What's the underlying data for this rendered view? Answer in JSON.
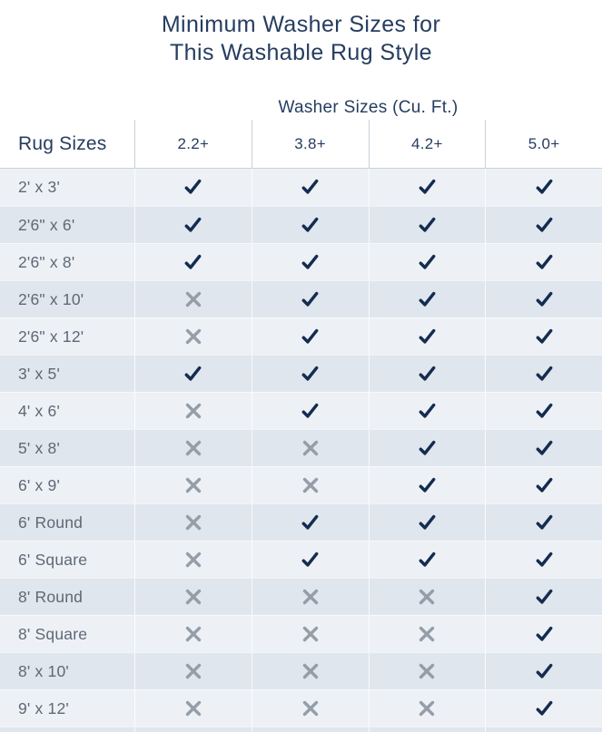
{
  "title": "Minimum Washer Sizes for\nThis Washable Rug Style",
  "chart_data": {
    "type": "table",
    "title": "Minimum Washer Sizes for This Washable Rug Style",
    "group_header": "Washer Sizes (Cu. Ft.)",
    "row_header": "Rug Sizes",
    "columns": [
      "2.2+",
      "3.8+",
      "4.2+",
      "5.0+"
    ],
    "cell_symbols": {
      "true": "check",
      "false": "x"
    },
    "rows": [
      {
        "label": "2' x 3'",
        "values": [
          true,
          true,
          true,
          true
        ]
      },
      {
        "label": "2'6\" x 6'",
        "values": [
          true,
          true,
          true,
          true
        ]
      },
      {
        "label": "2'6\" x 8'",
        "values": [
          true,
          true,
          true,
          true
        ]
      },
      {
        "label": "2'6\" x 10'",
        "values": [
          false,
          true,
          true,
          true
        ]
      },
      {
        "label": "2'6\" x 12'",
        "values": [
          false,
          true,
          true,
          true
        ]
      },
      {
        "label": "3' x 5'",
        "values": [
          true,
          true,
          true,
          true
        ]
      },
      {
        "label": "4' x 6'",
        "values": [
          false,
          true,
          true,
          true
        ]
      },
      {
        "label": "5' x 8'",
        "values": [
          false,
          false,
          true,
          true
        ]
      },
      {
        "label": "6' x 9'",
        "values": [
          false,
          false,
          true,
          true
        ]
      },
      {
        "label": "6' Round",
        "values": [
          false,
          true,
          true,
          true
        ]
      },
      {
        "label": "6' Square",
        "values": [
          false,
          true,
          true,
          true
        ]
      },
      {
        "label": "8' Round",
        "values": [
          false,
          false,
          false,
          true
        ]
      },
      {
        "label": "8' Square",
        "values": [
          false,
          false,
          false,
          true
        ]
      },
      {
        "label": "8' x 10'",
        "values": [
          false,
          false,
          false,
          true
        ]
      },
      {
        "label": "9' x 12'",
        "values": [
          false,
          false,
          false,
          true
        ]
      }
    ]
  },
  "colors": {
    "navy": "#263d60",
    "check": "#142c4f",
    "x_gray": "#959da9",
    "row_light": "#edf1f6",
    "row_dark": "#dfe6ee",
    "label_text": "#5f6874",
    "divider": "#c9d1da"
  }
}
